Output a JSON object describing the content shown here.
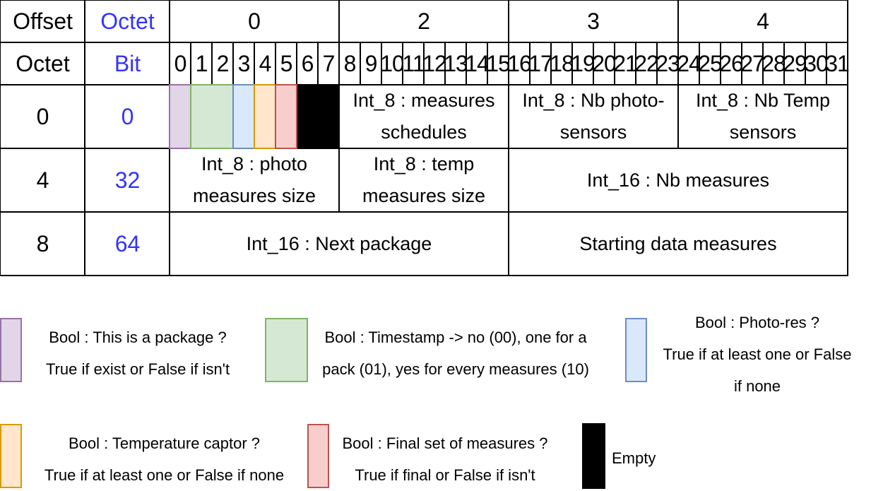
{
  "headers": {
    "offset": "Offset",
    "octet": "Octet",
    "bytes": [
      "0",
      "2",
      "3",
      "4"
    ]
  },
  "subheaders": {
    "octet": "Octet",
    "bit": "Bit",
    "bits": [
      "0",
      "1",
      "2",
      "3",
      "4",
      "5",
      "6",
      "7",
      "8",
      "9",
      "10",
      "11",
      "12",
      "13",
      "14",
      "15",
      "16",
      "17",
      "18",
      "19",
      "20",
      "21",
      "22",
      "23",
      "24",
      "25",
      "26",
      "27",
      "28",
      "29",
      "30",
      "31"
    ]
  },
  "rows": [
    {
      "offset": "0",
      "bit": "0",
      "fields": [
        "Int_8 : measures schedules",
        "Int_8 : Nb photo-sensors",
        "Int_8 : Nb Temp sensors"
      ]
    },
    {
      "offset": "4",
      "bit": "32",
      "fields": [
        "Int_8 : photo measures size",
        "Int_8 : temp measures size",
        "Int_16 : Nb measures"
      ]
    },
    {
      "offset": "8",
      "bit": "64",
      "fields": [
        "Int_16 : Next package",
        "Starting data measures"
      ]
    }
  ],
  "colors": {
    "accent_blue_text": "#3333ff",
    "package": {
      "fill": "#e1d5e7",
      "stroke": "#9673a6"
    },
    "timestamp": {
      "fill": "#d5e8d4",
      "stroke": "#82b366"
    },
    "photo": {
      "fill": "#dae8fc",
      "stroke": "#6c8ebf"
    },
    "temp": {
      "fill": "#ffe6cc",
      "stroke": "#d79b00"
    },
    "final": {
      "fill": "#f8cecc",
      "stroke": "#b85450"
    },
    "empty": {
      "fill": "#000000",
      "stroke": "#000000"
    }
  },
  "legend": [
    {
      "key": "package",
      "lines": [
        "Bool : This is a package ?",
        "True if exist or False if isn't"
      ]
    },
    {
      "key": "timestamp",
      "lines": [
        "Bool : Timestamp -> no (00), one for a",
        "pack (01), yes for every measures (10)"
      ]
    },
    {
      "key": "photo",
      "lines": [
        "Bool : Photo-res ?",
        "True if at least one or False",
        "if none"
      ]
    },
    {
      "key": "temp",
      "lines": [
        "Bool : Temperature captor ?",
        "True if at least one or False if none"
      ]
    },
    {
      "key": "final",
      "lines": [
        "Bool : Final set of measures ?",
        "True if final or False if isn't"
      ]
    },
    {
      "key": "empty",
      "lines": [
        "Empty"
      ]
    }
  ]
}
